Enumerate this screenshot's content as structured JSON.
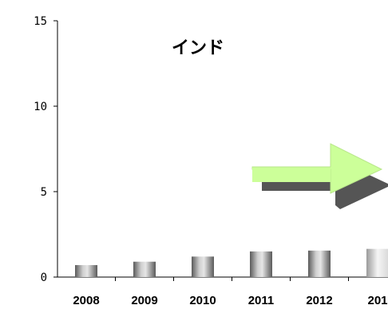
{
  "chart_data": {
    "type": "bar",
    "title": "インド",
    "categories": [
      "2008",
      "2009",
      "2010",
      "2011",
      "2012",
      "201"
    ],
    "values": [
      0.7,
      0.9,
      1.2,
      1.5,
      1.55,
      1.65
    ],
    "ylim": [
      0,
      15
    ],
    "yticks": [
      0,
      5,
      10,
      15
    ],
    "grid": false,
    "legend": "none",
    "annotation": "right-arrow",
    "colors": {
      "bar_dark": "#5a5a5a",
      "bar_light": "#e6e6e6",
      "arrow_fill": "#ccff99",
      "arrow_shadow": "#555555",
      "axis": "#000000"
    }
  }
}
